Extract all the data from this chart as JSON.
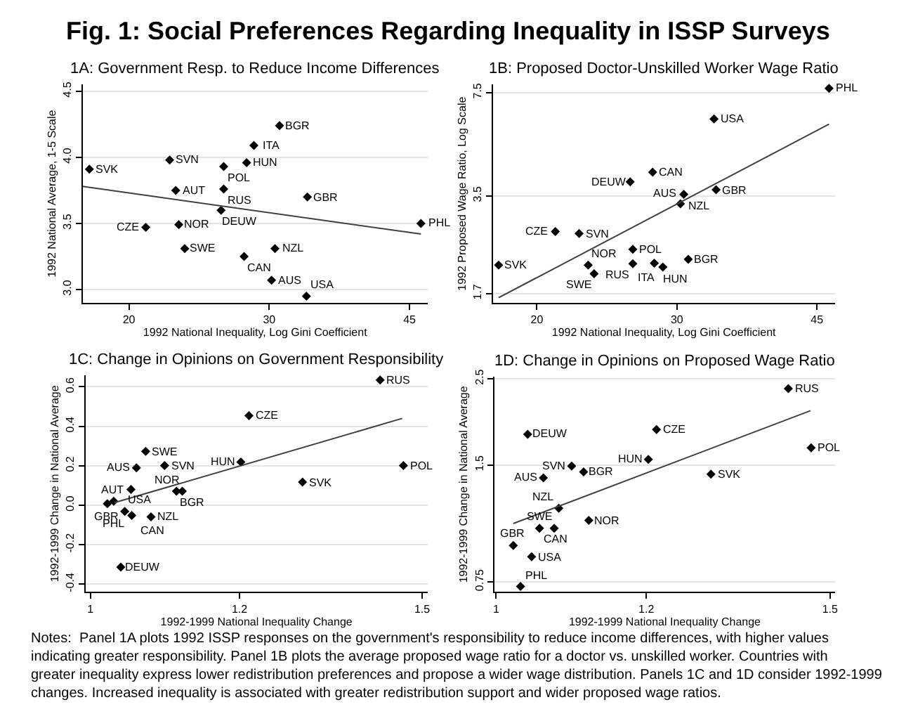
{
  "chart_data": [
    {
      "type": "other",
      "title": "Fig. 1: Social Preferences Regarding Inequality in ISSP Surveys",
      "annotations": [
        "Notes:  Panel 1A plots 1992 ISSP responses on the government's responsibility to reduce income differences, with higher values indicating greater responsibility. Panel 1B plots the average proposed wage ratio for a doctor vs. unskilled worker. Countries with greater inequality express lower redistribution preferences and propose a wider wage distribution. Panels 1C and 1D consider 1992-1999 changes. Increased inequality is associated with greater redistribution support and wider proposed wage ratios."
      ]
    },
    {
      "type": "scatter",
      "title": "1A: Government Resp. to Reduce Income Differences",
      "xlabel": "1992 National Inequality, Log Gini Coefficient",
      "ylabel": "1992 National Average, 1-5 Scale",
      "log": "x",
      "xlim": [
        17.5,
        47.4
      ],
      "xticks": [
        20,
        30,
        45
      ],
      "ylim": [
        2.9,
        4.55
      ],
      "yticks": [
        {
          "value": 3,
          "label": "3.0"
        },
        3.5,
        {
          "value": 4,
          "label": "4.0"
        },
        4.5
      ],
      "grid": "y",
      "marker": "diamond",
      "series": [
        {
          "color": "#000000",
          "x": [
            17.84,
            22.5,
            30.9,
            28.7,
            26.3,
            28.1,
            22.9,
            26.3,
            33.5,
            26.1,
            21.0,
            23.1,
            46.5,
            23.5,
            30.5,
            27.9,
            30.2,
            33.4
          ],
          "values": [
            3.91,
            3.98,
            4.24,
            4.09,
            3.93,
            3.96,
            3.75,
            3.76,
            3.7,
            3.6,
            3.47,
            3.49,
            3.5,
            3.31,
            3.31,
            3.25,
            3.07,
            2.95
          ],
          "value_labels": [
            "SVK",
            "SVN",
            "BGR",
            "ITA",
            "POL",
            "HUN",
            "AUT",
            "RUS",
            "GBR",
            "DEUW",
            "CZE",
            "NOR",
            "PHL",
            "SWE",
            "NZL",
            "CAN",
            "AUS",
            "USA"
          ]
        },
        {
          "type": "line",
          "marker": "none",
          "color": "#404040",
          "x": [
            17.5,
            46.5
          ],
          "values": [
            3.78,
            3.42
          ]
        }
      ]
    },
    {
      "type": "scatter",
      "title": "1B: Proposed Doctor-Unskilled Worker Wage Ratio",
      "xlabel": "1992 National Inequality, Log Gini Coefficient",
      "ylabel": "1992 Proposed Wage Ratio, Log Scale",
      "log": "xy",
      "xlim": [
        17.6,
        47.4
      ],
      "xticks": [
        20,
        30,
        45
      ],
      "ylim": [
        1.59,
        7.95
      ],
      "yticks": [
        1.7,
        3.5,
        7.5
      ],
      "grid": "y",
      "marker": "diamond",
      "series": [
        {
          "color": "#000000",
          "x": [
            46.6,
            33.4,
            27.96,
            26.2,
            30.6,
            33.6,
            30.3,
            21.1,
            22.6,
            26.4,
            17.9,
            23.2,
            26.4,
            28.1,
            28.8,
            31.0,
            23.6
          ],
          "values": [
            7.74,
            6.17,
            4.17,
            3.88,
            3.54,
            3.66,
            3.3,
            2.69,
            2.65,
            2.36,
            2.1,
            2.1,
            2.12,
            2.13,
            2.07,
            2.19,
            1.97
          ],
          "value_labels": [
            "PHL",
            "USA",
            "CAN",
            "DEUW",
            "NZL",
            "GBR",
            "AUS",
            "CZE",
            "SVN",
            "POL",
            "SVK",
            "NOR",
            "RUS",
            "HUN",
            "ITA",
            "BGR",
            "SWE"
          ]
        },
        {
          "type": "line",
          "marker": "none",
          "color": "#404040",
          "x": [
            17.9,
            46.6
          ],
          "values": [
            1.65,
            5.94
          ]
        }
      ]
    },
    {
      "type": "scatter",
      "title": "1C: Change in Opinions on Government Responsibility",
      "xlabel": "1992-1999 National Inequality Change",
      "ylabel": "1992-1999 Change in National Average",
      "log": "x",
      "xlim": [
        0.994,
        1.51
      ],
      "xticks": [
        1,
        1.2,
        1.5
      ],
      "ylim": [
        -0.44,
        0.658
      ],
      "yticks": [
        -0.4,
        -0.2,
        {
          "value": 0,
          "label": "0.0"
        },
        0.2,
        0.4,
        0.6
      ],
      "grid": "y",
      "marker": "diamond",
      "series": [
        {
          "color": "#000000",
          "x": [
            1.425,
            1.214,
            1.466,
            1.202,
            1.296,
            1.07,
            1.095,
            1.058,
            1.051,
            1.111,
            1.119,
            1.021,
            1.029,
            1.043,
            1.052,
            1.077,
            1.038
          ],
          "values": [
            0.635,
            0.454,
            0.201,
            0.219,
            0.117,
            0.273,
            0.201,
            0.189,
            0.08,
            0.071,
            0.071,
            0.008,
            0.02,
            -0.031,
            -0.052,
            -0.059,
            -0.314
          ],
          "value_labels": [
            "RUS",
            "CZE",
            "POL",
            "HUN",
            "SVK",
            "SWE",
            "SVN",
            "AUS",
            "AUT",
            "BGR",
            "NOR",
            "GBR",
            "PHL",
            "USA",
            "CAN",
            "NZL",
            "DEUW"
          ]
        },
        {
          "type": "line",
          "marker": "none",
          "color": "#404040",
          "x": [
            1.03,
            1.464
          ],
          "values": [
            0.013,
            0.44
          ]
        }
      ]
    },
    {
      "type": "scatter",
      "title": "1D: Change in Opinions on Proposed Wage Ratio",
      "xlabel": "1992-1999 National Inequality Change",
      "ylabel": "1992-1999 Change in National Average",
      "log": "xy",
      "xlim": [
        0.998,
        1.509
      ],
      "xticks": [
        1,
        1.2,
        1.5
      ],
      "ylim": [
        0.706,
        2.53
      ],
      "yticks": [
        0.75,
        1.5,
        2.5
      ],
      "grid": "y",
      "marker": "diamond",
      "series": [
        {
          "color": "#000000",
          "x": [
            1.426,
            1.215,
            1.039,
            1.466,
            1.203,
            1.096,
            1.112,
            1.298,
            1.059,
            1.079,
            1.119,
            1.054,
            1.073,
            1.021,
            1.044,
            1.03
          ],
          "values": [
            2.36,
            1.85,
            1.8,
            1.66,
            1.55,
            1.49,
            1.44,
            1.42,
            1.39,
            1.16,
            1.08,
            1.03,
            1.03,
            0.93,
            0.87,
            0.73
          ],
          "value_labels": [
            "RUS",
            "CZE",
            "DEUW",
            "POL",
            "HUN",
            "SVN",
            "BGR",
            "SVK",
            "AUS",
            "NZL",
            "NOR",
            "CAN",
            "SWE",
            "GBR",
            "USA",
            "PHL"
          ]
        },
        {
          "type": "line",
          "marker": "none",
          "color": "#404040",
          "x": [
            1.021,
            1.465
          ],
          "values": [
            1.06,
            2.07
          ]
        }
      ]
    }
  ]
}
